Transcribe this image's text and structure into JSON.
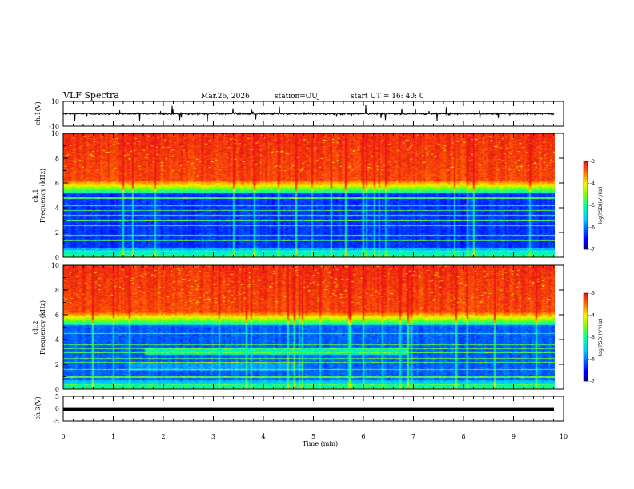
{
  "header": {
    "title": "VLF Spectra",
    "date": "Mar.26, 2026",
    "station": "station=OUJ",
    "start": "start  UT =   16: 40: 0"
  },
  "chart_data": [
    {
      "type": "line",
      "name": "ch1_waveform",
      "ylabel": "ch.1(V)",
      "ylim": [
        -10,
        10
      ],
      "y_ticks": [
        "10",
        "-10"
      ],
      "xlim": [
        0,
        10
      ],
      "baseline": 0
    },
    {
      "type": "heatmap",
      "name": "ch1_spectrogram",
      "ylabel": "ch.1\nFrequency (kHz)",
      "ylabel_line1": "ch.1",
      "ylabel_line2": "Frequency (kHz)",
      "y_ticks": [
        "0",
        "2",
        "4",
        "6",
        "8",
        "10"
      ],
      "ylim": [
        0,
        10
      ],
      "xlim": [
        0,
        9.85
      ],
      "colorbar": {
        "label": "log(PSD)(V²/Hz)",
        "ticks": [
          "-3",
          "-4",
          "-5",
          "-6",
          "-7"
        ],
        "range": [
          -7,
          -3
        ]
      }
    },
    {
      "type": "heatmap",
      "name": "ch2_spectrogram",
      "ylabel_line1": "ch.2",
      "ylabel_line2": "Frequency (kHz)",
      "y_ticks": [
        "0",
        "2",
        "4",
        "6",
        "8",
        "10"
      ],
      "ylim": [
        0,
        10
      ],
      "xlim": [
        0,
        9.85
      ],
      "colorbar": {
        "label": "log(PSD)(V²/Hz)",
        "ticks": [
          "-3",
          "-4",
          "-5",
          "-6",
          "-7"
        ],
        "range": [
          -7,
          -3
        ]
      }
    },
    {
      "type": "line",
      "name": "ch3_waveform",
      "ylabel": "ch.3(V)",
      "ylim": [
        -5,
        5
      ],
      "y_ticks": [
        "5",
        "0",
        "-5"
      ],
      "xlim": [
        0,
        10
      ],
      "baseline": -0.2
    }
  ],
  "xaxis": {
    "label": "Time  (min)",
    "ticks": [
      "0",
      "1",
      "2",
      "3",
      "4",
      "5",
      "6",
      "7",
      "8",
      "9",
      "10"
    ]
  }
}
